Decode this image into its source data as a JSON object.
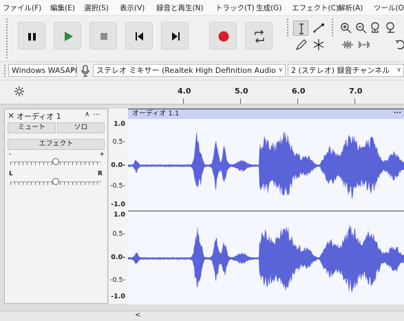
{
  "menu": [
    "ファイル(F)",
    "編集(E)",
    "選択(S)",
    "表示(V)",
    "録音と再生(N)",
    "トラック(T)",
    "生成(G)",
    "エフェクト(C)",
    "解析(A)",
    "ツール(O)"
  ],
  "transport": {
    "pause_icon": "pause-icon",
    "play_icon": "play-icon",
    "stop_icon": "stop-icon",
    "skip_start_icon": "skip-to-start-icon",
    "skip_end_icon": "skip-to-end-icon",
    "record_icon": "record-icon",
    "loop_icon": "loop-icon",
    "colors": {
      "play": "#2e8b3c",
      "record": "#d3202c"
    }
  },
  "tools": [
    "selection-tool-icon",
    "envelope-tool-icon",
    "draw-tool-icon",
    "multi-tool-icon",
    "zoom-in-icon",
    "zoom-out-icon",
    "zoom-selection-icon",
    "trim-icon",
    "silence-icon",
    "undo-icon"
  ],
  "devices": {
    "host": "Windows WASAPI",
    "mic_icon": "microphone-icon",
    "recording_device": "ステレオ ミキサー (Realtek High Definition Audio",
    "channels": "2 (ステレオ) 録音チャンネル"
  },
  "timeline": {
    "gear_icon": "gear-icon",
    "labels": [
      "4.0",
      "5.0",
      "6.0",
      "7.0"
    ]
  },
  "track": {
    "name": "オーディオ 1",
    "close": "×",
    "collapse": "∧",
    "menu": "···",
    "mute": "ミュート",
    "solo": "ソロ",
    "effects": "エフェクト",
    "gain_minus": "-",
    "gain_plus": "+",
    "pan_left": "L",
    "pan_right": "R",
    "gain_level": 0.5,
    "pan_level": 0.5
  },
  "clip": {
    "name": "オーディオ 1.1",
    "menu": "···",
    "color": "#5a63d8"
  },
  "vscale": {
    "top": [
      "1.0",
      "0.5-",
      "0.0-",
      "-0.5-",
      "-1.0"
    ],
    "bottom": [
      "1.0",
      "0.5-",
      "0.0-",
      "-0.5-",
      "-1.0"
    ]
  },
  "hscroll": {
    "left_arrow": "<"
  }
}
